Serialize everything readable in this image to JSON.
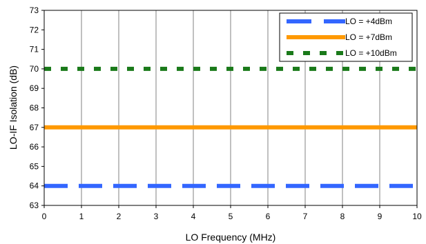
{
  "chart_data": {
    "type": "line",
    "title": "",
    "xlabel": "LO Frequency (MHz)",
    "ylabel": "LO-IF Isolation (dB)",
    "xlim": [
      0,
      10
    ],
    "ylim": [
      63,
      73
    ],
    "xticks": [
      0,
      1,
      2,
      3,
      4,
      5,
      6,
      7,
      8,
      9,
      10
    ],
    "yticks": [
      63,
      64,
      65,
      66,
      67,
      68,
      69,
      70,
      71,
      72,
      73
    ],
    "grid": "vertical",
    "legend_position": "top-right",
    "series": [
      {
        "name": "LO = +4dBm",
        "color": "#3366ff",
        "style": "long-dash",
        "x": [
          0,
          10
        ],
        "y": [
          64,
          64
        ]
      },
      {
        "name": "LO = +7dBm",
        "color": "#ff9900",
        "style": "solid",
        "x": [
          0,
          10
        ],
        "y": [
          67,
          67
        ]
      },
      {
        "name": "LO = +10dBm",
        "color": "#1a7a1a",
        "style": "short-dash",
        "x": [
          0,
          10
        ],
        "y": [
          70,
          70
        ]
      }
    ]
  }
}
